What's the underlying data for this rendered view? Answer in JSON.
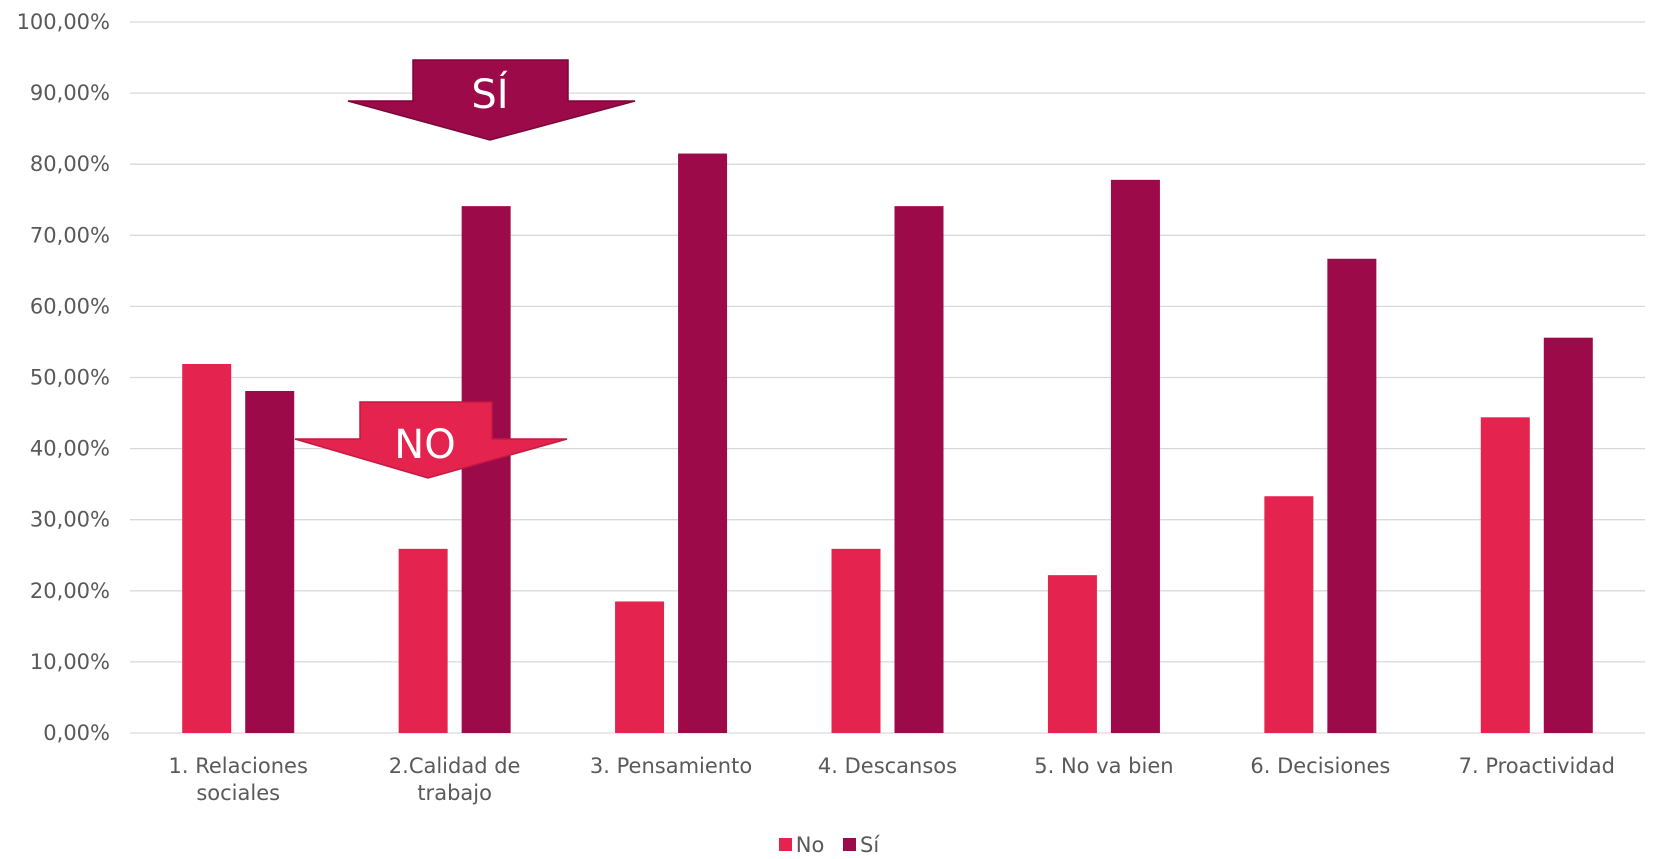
{
  "chart_data": {
    "type": "bar",
    "categories": [
      "1. Relaciones sociales",
      "2.Calidad de trabajo",
      "3. Pensamiento",
      "4. Descansos",
      "5. No va bien",
      "6. Decisiones",
      "7. Proactividad"
    ],
    "category_lines": [
      [
        "1. Relaciones",
        "sociales"
      ],
      [
        "2.Calidad de",
        "trabajo"
      ],
      [
        "3. Pensamiento"
      ],
      [
        "4. Descansos"
      ],
      [
        "5. No va bien"
      ],
      [
        "6. Decisiones"
      ],
      [
        "7. Proactividad"
      ]
    ],
    "series": [
      {
        "name": "No",
        "color": "#e5234f",
        "values": [
          51.9,
          25.9,
          18.5,
          25.9,
          22.2,
          33.3,
          44.4
        ]
      },
      {
        "name": "Sí",
        "color": "#9c0a4a",
        "values": [
          48.1,
          74.1,
          81.5,
          74.1,
          77.8,
          66.7,
          55.6
        ]
      }
    ],
    "ylim": [
      0,
      100
    ],
    "yticks": [
      "0,00%",
      "10,00%",
      "20,00%",
      "30,00%",
      "40,00%",
      "50,00%",
      "60,00%",
      "70,00%",
      "80,00%",
      "90,00%",
      "100,00%"
    ],
    "grid": true,
    "legend_position": "bottom",
    "annotations": [
      {
        "text": "SÍ",
        "color": "#9c0a4a"
      },
      {
        "text": "NO",
        "color": "#e5234f"
      }
    ]
  }
}
